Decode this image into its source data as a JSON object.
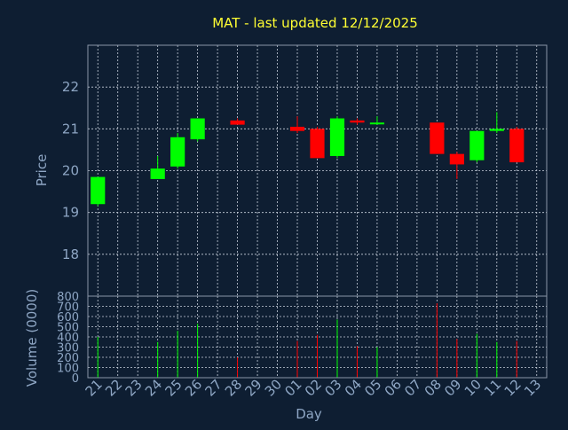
{
  "chart_data": {
    "type": "candlestick",
    "title": "MAT - last updated 12/12/2025",
    "xlabel": "Day",
    "ylabel": "Price",
    "volume_label": "Volume (0000)",
    "x_ticks": [
      "21",
      "22",
      "23",
      "24",
      "25",
      "26",
      "27",
      "28",
      "29",
      "30",
      "01",
      "02",
      "03",
      "04",
      "05",
      "06",
      "07",
      "08",
      "09",
      "10",
      "11",
      "12",
      "13"
    ],
    "price_ticks": [
      18,
      19,
      20,
      21,
      22
    ],
    "price_range": [
      17.0,
      23.0
    ],
    "volume_ticks": [
      0,
      100,
      200,
      300,
      400,
      500,
      600,
      700,
      800
    ],
    "volume_range": [
      0,
      800
    ],
    "grid": true,
    "colors": {
      "background": "#0e1e32",
      "up": "#00ff00",
      "down": "#ff0000",
      "title": "#ffff33",
      "text": "#8ea6c4",
      "grid": "#c8d0dc"
    },
    "candles": [
      {
        "day": "21",
        "open": 19.2,
        "high": 19.85,
        "low": 19.15,
        "close": 19.85,
        "volume": 400
      },
      {
        "day": "24",
        "open": 19.8,
        "high": 20.35,
        "low": 19.8,
        "close": 20.05,
        "volume": 350
      },
      {
        "day": "25",
        "open": 20.1,
        "high": 20.9,
        "low": 20.05,
        "close": 20.8,
        "volume": 460
      },
      {
        "day": "26",
        "open": 20.75,
        "high": 21.25,
        "low": 20.7,
        "close": 21.25,
        "volume": 530
      },
      {
        "day": "28",
        "open": 21.2,
        "high": 21.25,
        "low": 21.1,
        "close": 21.1,
        "volume": 200
      },
      {
        "day": "01",
        "open": 21.05,
        "high": 21.3,
        "low": 20.9,
        "close": 20.95,
        "volume": 360
      },
      {
        "day": "02",
        "open": 21.0,
        "high": 21.05,
        "low": 20.3,
        "close": 20.3,
        "volume": 420
      },
      {
        "day": "03",
        "open": 20.35,
        "high": 21.3,
        "low": 20.3,
        "close": 21.25,
        "volume": 570
      },
      {
        "day": "04",
        "open": 21.2,
        "high": 21.25,
        "low": 21.1,
        "close": 21.15,
        "volume": 310
      },
      {
        "day": "05",
        "open": 21.15,
        "high": 21.3,
        "low": 21.1,
        "close": 21.15,
        "volume": 300
      },
      {
        "day": "08",
        "open": 21.15,
        "high": 21.15,
        "low": 20.4,
        "close": 20.4,
        "volume": 730
      },
      {
        "day": "09",
        "open": 20.4,
        "high": 20.45,
        "low": 19.8,
        "close": 20.15,
        "volume": 380
      },
      {
        "day": "10",
        "open": 20.25,
        "high": 20.95,
        "low": 20.2,
        "close": 20.95,
        "volume": 430
      },
      {
        "day": "11",
        "open": 20.95,
        "high": 21.4,
        "low": 20.9,
        "close": 21.0,
        "volume": 350
      },
      {
        "day": "12",
        "open": 21.0,
        "high": 21.05,
        "low": 20.2,
        "close": 20.2,
        "volume": 360
      }
    ]
  }
}
